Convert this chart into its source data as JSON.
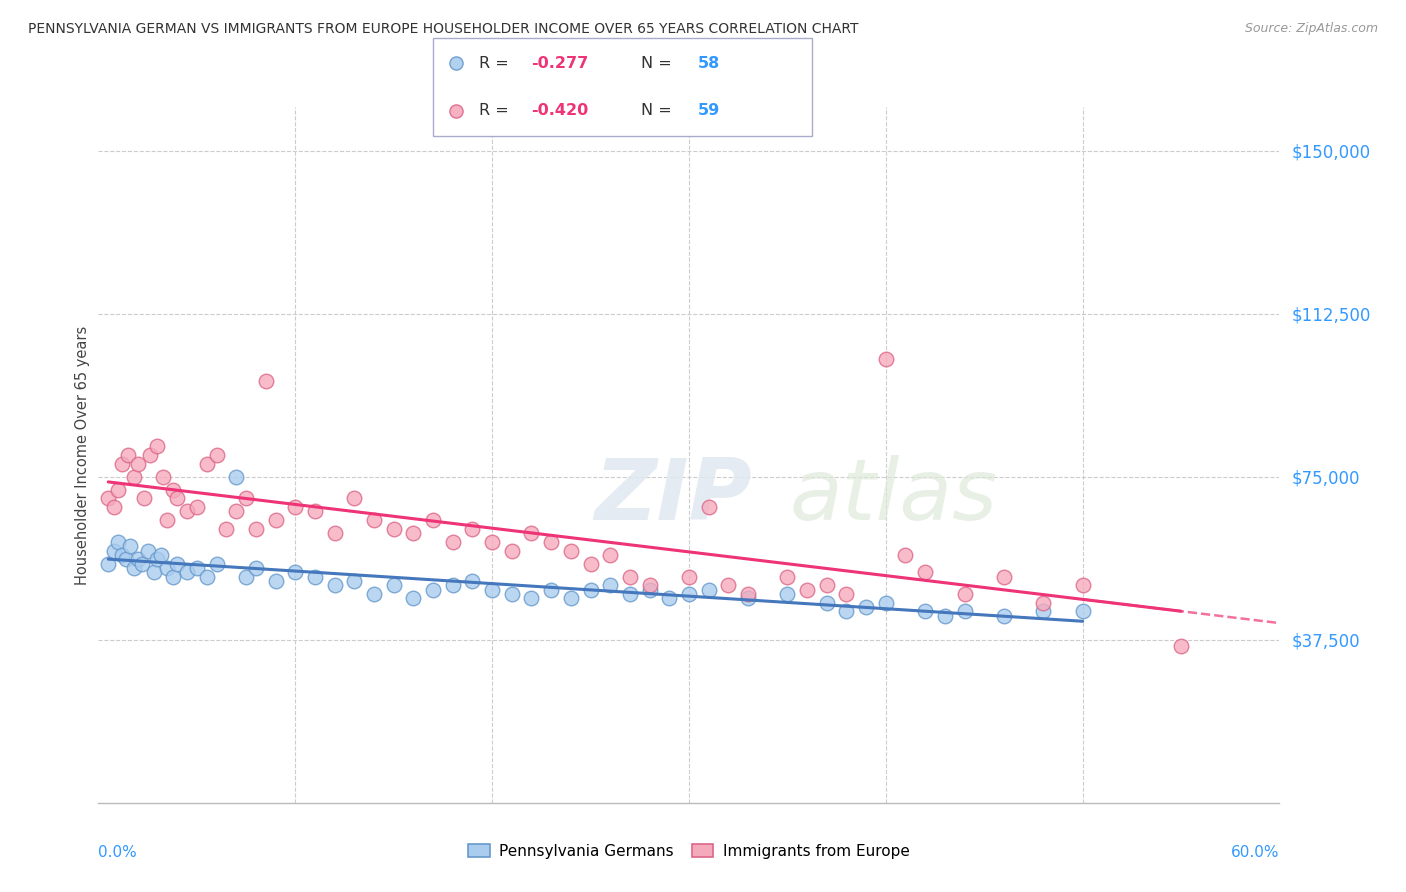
{
  "title": "PENNSYLVANIA GERMAN VS IMMIGRANTS FROM EUROPE HOUSEHOLDER INCOME OVER 65 YEARS CORRELATION CHART",
  "source": "Source: ZipAtlas.com",
  "ylabel": "Householder Income Over 65 years",
  "yticks": [
    0,
    37500,
    75000,
    112500,
    150000
  ],
  "ytick_labels": [
    "",
    "$37,500",
    "$75,000",
    "$112,500",
    "$150,000"
  ],
  "legend_blue_r": "-0.277",
  "legend_blue_n": "58",
  "legend_pink_r": "-0.420",
  "legend_pink_n": "59",
  "legend_blue_label": "Pennsylvania Germans",
  "legend_pink_label": "Immigrants from Europe",
  "watermark_zip": "ZIP",
  "watermark_atlas": "atlas",
  "blue_scatter_color": "#aaccee",
  "pink_scatter_color": "#f5aabc",
  "blue_edge_color": "#6699cc",
  "pink_edge_color": "#dd6688",
  "blue_line_color": "#4477bb",
  "pink_line_color": "#ee3377",
  "blue_x": [
    0.5,
    0.8,
    1.0,
    1.2,
    1.4,
    1.6,
    1.8,
    2.0,
    2.2,
    2.5,
    2.8,
    3.0,
    3.2,
    3.5,
    3.8,
    4.0,
    4.5,
    5.0,
    5.5,
    6.0,
    7.0,
    7.5,
    8.0,
    9.0,
    10.0,
    11.0,
    12.0,
    13.0,
    14.0,
    15.0,
    16.0,
    17.0,
    18.0,
    19.0,
    20.0,
    21.0,
    22.0,
    23.0,
    24.0,
    25.0,
    26.0,
    27.0,
    28.0,
    29.0,
    30.0,
    31.0,
    33.0,
    35.0,
    37.0,
    38.0,
    39.0,
    40.0,
    42.0,
    43.0,
    44.0,
    46.0,
    48.0,
    50.0
  ],
  "blue_y": [
    55000,
    58000,
    60000,
    57000,
    56000,
    59000,
    54000,
    56000,
    55000,
    58000,
    53000,
    56000,
    57000,
    54000,
    52000,
    55000,
    53000,
    54000,
    52000,
    55000,
    75000,
    52000,
    54000,
    51000,
    53000,
    52000,
    50000,
    51000,
    48000,
    50000,
    47000,
    49000,
    50000,
    51000,
    49000,
    48000,
    47000,
    49000,
    47000,
    49000,
    50000,
    48000,
    49000,
    47000,
    48000,
    49000,
    47000,
    48000,
    46000,
    44000,
    45000,
    46000,
    44000,
    43000,
    44000,
    43000,
    44000,
    44000
  ],
  "pink_x": [
    0.5,
    0.8,
    1.0,
    1.2,
    1.5,
    1.8,
    2.0,
    2.3,
    2.6,
    3.0,
    3.3,
    3.5,
    3.8,
    4.0,
    4.5,
    5.0,
    5.5,
    6.0,
    6.5,
    7.0,
    7.5,
    8.0,
    8.5,
    9.0,
    10.0,
    11.0,
    12.0,
    13.0,
    14.0,
    15.0,
    16.0,
    17.0,
    18.0,
    19.0,
    20.0,
    21.0,
    22.0,
    23.0,
    24.0,
    25.0,
    26.0,
    27.0,
    28.0,
    30.0,
    31.0,
    32.0,
    33.0,
    35.0,
    36.0,
    37.0,
    38.0,
    40.0,
    41.0,
    42.0,
    44.0,
    46.0,
    48.0,
    50.0,
    55.0
  ],
  "pink_y": [
    70000,
    68000,
    72000,
    78000,
    80000,
    75000,
    78000,
    70000,
    80000,
    82000,
    75000,
    65000,
    72000,
    70000,
    67000,
    68000,
    78000,
    80000,
    63000,
    67000,
    70000,
    63000,
    97000,
    65000,
    68000,
    67000,
    62000,
    70000,
    65000,
    63000,
    62000,
    65000,
    60000,
    63000,
    60000,
    58000,
    62000,
    60000,
    58000,
    55000,
    57000,
    52000,
    50000,
    52000,
    68000,
    50000,
    48000,
    52000,
    49000,
    50000,
    48000,
    102000,
    57000,
    53000,
    48000,
    52000,
    46000,
    50000,
    36000
  ]
}
